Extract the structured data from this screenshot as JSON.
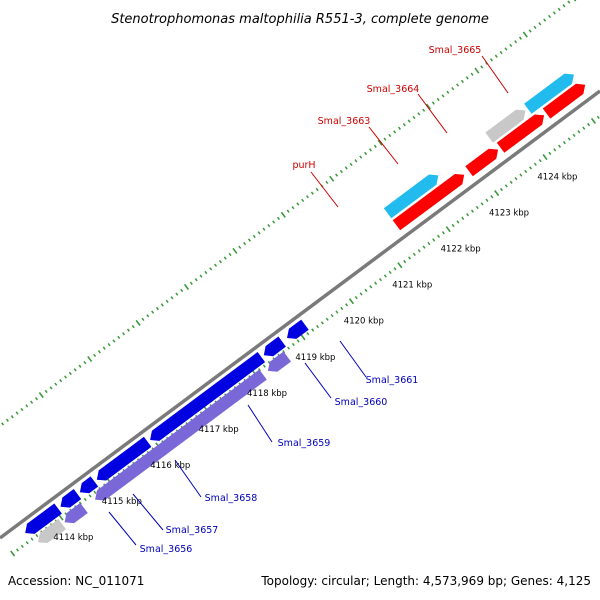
{
  "title": "Stenotrophomonas maltophilia R551-3, complete genome",
  "footer": {
    "accession": "Accession: NC_011071",
    "summary": "Topology: circular; Length: 4,573,969 bp; Genes: 4,125"
  },
  "colors": {
    "backbone": "#7a7a7a",
    "tick_dots": "#3a9a3a",
    "label_forward": "#cc0000",
    "label_reverse": "#0000bb"
  },
  "scale": {
    "unit": "kbp",
    "ticks": [
      {
        "position": 4114,
        "label": "4114 kbp"
      },
      {
        "position": 4115,
        "label": "4115 kbp"
      },
      {
        "position": 4116,
        "label": "4116 kbp"
      },
      {
        "position": 4117,
        "label": "4117 kbp"
      },
      {
        "position": 4118,
        "label": "4118 kbp"
      },
      {
        "position": 4119,
        "label": "4119 kbp"
      },
      {
        "position": 4120,
        "label": "4120 kbp"
      },
      {
        "position": 4121,
        "label": "4121 kbp"
      },
      {
        "position": 4122,
        "label": "4122 kbp"
      },
      {
        "position": 4123,
        "label": "4123 kbp"
      },
      {
        "position": 4124,
        "label": "4124 kbp"
      }
    ]
  },
  "features": [
    {
      "strand": "reverse",
      "track": 1,
      "start": 4113.62,
      "end": 4114.3,
      "color": "#0000e0"
    },
    {
      "strand": "reverse",
      "track": 1,
      "start": 4114.35,
      "end": 4114.7,
      "color": "#0000e0"
    },
    {
      "strand": "reverse",
      "track": 1,
      "start": 4114.75,
      "end": 4115.05,
      "color": "#0000e0"
    },
    {
      "strand": "reverse",
      "track": 1,
      "start": 4115.1,
      "end": 4116.15,
      "color": "#0000e0"
    },
    {
      "strand": "reverse",
      "track": 1,
      "start": 4116.2,
      "end": 4118.5,
      "color": "#0000e0"
    },
    {
      "strand": "reverse",
      "track": 1,
      "start": 4118.55,
      "end": 4118.93,
      "color": "#0000e0"
    },
    {
      "strand": "reverse",
      "track": 1,
      "start": 4119.03,
      "end": 4119.4,
      "color": "#0000e0"
    },
    {
      "strand": "reverse",
      "track": 2,
      "start": 4113.7,
      "end": 4114.2,
      "color": "#c8c8c8"
    },
    {
      "strand": "reverse",
      "track": 2,
      "start": 4114.25,
      "end": 4114.65,
      "color": "#7b68d8"
    },
    {
      "strand": "reverse",
      "track": 2,
      "start": 4114.88,
      "end": 4118.35,
      "color": "#7b68d8"
    },
    {
      "strand": "reverse",
      "track": 2,
      "start": 4118.45,
      "end": 4118.85,
      "color": "#7b68d8"
    },
    {
      "strand": "forward",
      "track": 1,
      "start": 4121.6,
      "end": 4123.0,
      "color": "#ff0000"
    },
    {
      "strand": "forward",
      "track": 1,
      "start": 4123.1,
      "end": 4123.7,
      "color": "#ff0000"
    },
    {
      "strand": "forward",
      "track": 1,
      "start": 4123.75,
      "end": 4124.65,
      "color": "#ff0000"
    },
    {
      "strand": "forward",
      "track": 1,
      "start": 4124.7,
      "end": 4125.5,
      "color": "#ff0000"
    },
    {
      "strand": "forward",
      "track": 2,
      "start": 4121.6,
      "end": 4122.65,
      "color": "#22bbee"
    },
    {
      "strand": "forward",
      "track": 2,
      "start": 4123.7,
      "end": 4124.45,
      "color": "#c8c8c8"
    },
    {
      "strand": "forward",
      "track": 2,
      "start": 4124.5,
      "end": 4125.45,
      "color": "#22bbee"
    }
  ],
  "gene_labels": [
    {
      "name": "purH",
      "strand": "forward"
    },
    {
      "name": "Smal_3663",
      "strand": "forward"
    },
    {
      "name": "Smal_3664",
      "strand": "forward"
    },
    {
      "name": "Smal_3665",
      "strand": "forward"
    },
    {
      "name": "Smal_3656",
      "strand": "reverse"
    },
    {
      "name": "Smal_3657",
      "strand": "reverse"
    },
    {
      "name": "Smal_3658",
      "strand": "reverse"
    },
    {
      "name": "Smal_3659",
      "strand": "reverse"
    },
    {
      "name": "Smal_3660",
      "strand": "reverse"
    },
    {
      "name": "Smal_3661",
      "strand": "reverse"
    }
  ]
}
